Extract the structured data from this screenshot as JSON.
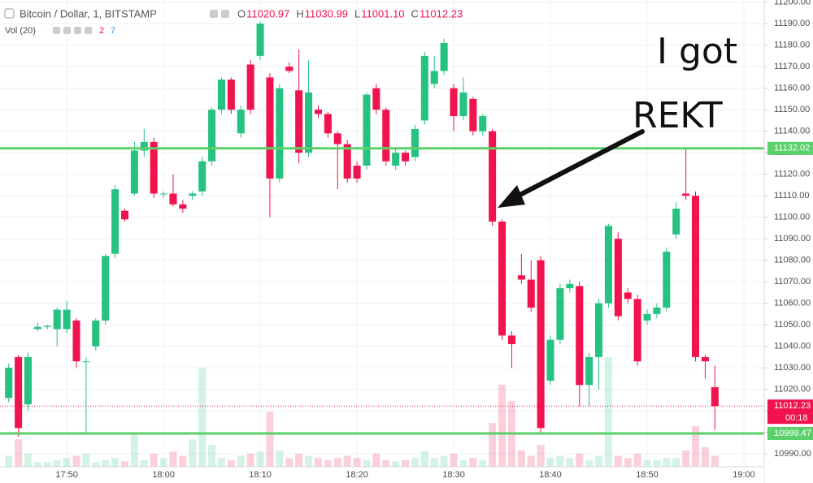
{
  "chart_data": {
    "type": "candlestick",
    "title": "Bitcoin / Dollar, 1, BITSTAMP",
    "ohlc_legend": {
      "labels": [
        "O",
        "H",
        "L",
        "C"
      ],
      "values": [
        "11020.97",
        "11030.99",
        "11001.10",
        "11012.23"
      ]
    },
    "volume_legend": {
      "label": "Vol (20)",
      "values": [
        "2",
        "7"
      ]
    },
    "up_color": "#26c281",
    "down_color": "#f0134d",
    "x": [
      1064,
      1065,
      1066,
      1067,
      1068,
      1069,
      1070,
      1071,
      1072,
      1073,
      1074,
      1075,
      1076,
      1077,
      1078,
      1079,
      1080,
      1081,
      1082,
      1083,
      1084,
      1085,
      1086,
      1087,
      1088,
      1089,
      1090,
      1091,
      1092,
      1093,
      1094,
      1095,
      1096,
      1097,
      1098,
      1099,
      1100,
      1101,
      1102,
      1103,
      1104,
      1105,
      1106,
      1107,
      1108,
      1109,
      1110,
      1111,
      1112,
      1113,
      1114,
      1115,
      1116,
      1117,
      1118,
      1119,
      1120,
      1121,
      1122,
      1123,
      1124,
      1125,
      1126,
      1127,
      1128,
      1129,
      1130,
      1131,
      1132,
      1133,
      1134,
      1135,
      1136,
      1137
    ],
    "open": [
      11016,
      11035,
      11013,
      11048,
      11049,
      11048,
      11048,
      11052,
      11033,
      11040,
      11052,
      11083,
      11103,
      11111,
      11131,
      11135,
      11111,
      11111,
      11106,
      11110,
      11112,
      11126,
      11150,
      11164,
      11139,
      11171,
      11175,
      11165,
      11118,
      11170,
      11159,
      11130,
      11150,
      11148,
      11139,
      11134,
      11124,
      11124,
      11160,
      11150,
      11124,
      11130,
      11128,
      11145,
      11162,
      11168,
      11160,
      11147,
      11155,
      11140,
      11140,
      11098,
      11045,
      11073,
      11071,
      11080,
      11024,
      11043,
      11067,
      11068,
      11022,
      11035,
      11060,
      11090,
      11065,
      11062,
      11052,
      11055,
      11058,
      11092,
      11111,
      11110,
      11035,
      11020.97
    ],
    "high": [
      11032,
      11036,
      11037,
      11051,
      11050,
      11058,
      11061,
      11053,
      11035,
      11053,
      11083,
      11115,
      11104,
      11135,
      11141,
      11137,
      11112,
      11120,
      11108,
      11112,
      11128,
      11151,
      11165,
      11165,
      11152,
      11173,
      11191,
      11167,
      11162,
      11172,
      11178,
      11173,
      11152,
      11149,
      11140,
      11136,
      11126,
      11158,
      11162,
      11151,
      11132,
      11131,
      11143,
      11177,
      11175,
      11183,
      11162,
      11165,
      11156,
      11148,
      11141,
      11099,
      11047,
      11083,
      11080,
      11082,
      11045,
      11069,
      11071,
      11070,
      11037,
      11062,
      11097,
      11093,
      11067,
      11064,
      11057,
      11060,
      11086,
      11107,
      11132,
      11112,
      11036,
      11030.99
    ],
    "low": [
      11014,
      10998,
      11010,
      11047,
      11048,
      11040,
      11046,
      11030,
      11000,
      11038,
      11050,
      11081,
      11098,
      11110,
      11128,
      11109,
      11109,
      11105,
      11102,
      11108,
      11110,
      11124,
      11148,
      11148,
      11137,
      11148,
      11173,
      11100,
      11116,
      11167,
      11125,
      11128,
      11146,
      11137,
      11113,
      11116,
      11116,
      11122,
      11148,
      11124,
      11122,
      11124,
      11126,
      11143,
      11160,
      11166,
      11140,
      11145,
      11138,
      11138,
      11096,
      11043,
      11030,
      11069,
      11056,
      11000,
      11022,
      11041,
      11065,
      11012,
      11012,
      11020,
      11058,
      11052,
      11060,
      11031,
      11050,
      11053,
      11056,
      11090,
      11108,
      11033,
      11025,
      11001.1
    ],
    "close": [
      11030,
      11002,
      11035,
      11049,
      11049.5,
      11057,
      11057,
      11033,
      11033,
      11052,
      11082,
      11113,
      11099,
      11131,
      11135,
      11111,
      11111,
      11106,
      11104,
      11111,
      11126,
      11150,
      11164,
      11150,
      11150,
      11150,
      11190,
      11118,
      11160,
      11168,
      11130,
      11158,
      11148,
      11139,
      11134,
      11118,
      11118,
      11157,
      11150,
      11126,
      11130,
      11126,
      11141,
      11175,
      11168,
      11181,
      11147,
      11158,
      11140,
      11147,
      11098,
      11045,
      11041,
      11071,
      11058,
      11002,
      11043,
      11067,
      11069,
      11022,
      11035,
      11060,
      11096,
      11054,
      11062,
      11033,
      11055,
      11058,
      11084,
      11104,
      11110,
      11035,
      11033,
      11012.23
    ],
    "volume": [
      10,
      25,
      12,
      4,
      4,
      6,
      8,
      10,
      12,
      4,
      6,
      8,
      5,
      30,
      6,
      12,
      8,
      14,
      10,
      25,
      90,
      20,
      8,
      6,
      10,
      12,
      14,
      50,
      15,
      8,
      12,
      10,
      8,
      6,
      8,
      10,
      8,
      6,
      12,
      6,
      5,
      6,
      8,
      14,
      8,
      10,
      12,
      6,
      8,
      6,
      40,
      75,
      60,
      15,
      10,
      20,
      8,
      10,
      8,
      12,
      6,
      10,
      100,
      10,
      8,
      12,
      6,
      6,
      8,
      8,
      15,
      37,
      18,
      10
    ],
    "xlim": [
      1063.1,
      1142.1
    ],
    "xticks": [
      {
        "value": 1070,
        "label": "17:50"
      },
      {
        "value": 1080,
        "label": "18:00"
      },
      {
        "value": 1090,
        "label": "18:10"
      },
      {
        "value": 1100,
        "label": "18:20"
      },
      {
        "value": 1110,
        "label": "18:30"
      },
      {
        "value": 1120,
        "label": "18:40"
      },
      {
        "value": 1130,
        "label": "18:50"
      },
      {
        "value": 1140,
        "label": "19:00"
      }
    ],
    "ylim": [
      10984,
      11201
    ],
    "yticks": [
      {
        "value": 10990,
        "label": "10990.00"
      },
      {
        "value": 11000,
        "label": "11000.00"
      },
      {
        "value": 11010,
        "label": "11010.00"
      },
      {
        "value": 11020,
        "label": "11020.00"
      },
      {
        "value": 11030,
        "label": "11030.00"
      },
      {
        "value": 11040,
        "label": "11040.00"
      },
      {
        "value": 11050,
        "label": "11050.00"
      },
      {
        "value": 11060,
        "label": "11060.00"
      },
      {
        "value": 11070,
        "label": "11070.00"
      },
      {
        "value": 11080,
        "label": "11080.00"
      },
      {
        "value": 11090,
        "label": "11090.00"
      },
      {
        "value": 11100,
        "label": "11100.00"
      },
      {
        "value": 11110,
        "label": "11110.00"
      },
      {
        "value": 11120,
        "label": "11120.00"
      },
      {
        "value": 11130,
        "label": "11130.00"
      },
      {
        "value": 11140,
        "label": "11140.00"
      },
      {
        "value": 11150,
        "label": "11150.00"
      },
      {
        "value": 11160,
        "label": "11160.00"
      },
      {
        "value": 11170,
        "label": "11170.00"
      },
      {
        "value": 11180,
        "label": "11180.00"
      },
      {
        "value": 11190,
        "label": "11190.00"
      },
      {
        "value": 11200,
        "label": "11200.00"
      }
    ],
    "grid": true,
    "levels": {
      "values": [
        11132.02,
        10999.47
      ],
      "color": "#5bd16b"
    },
    "countdown": "00:18",
    "annotations": [
      "I got",
      "REKT"
    ]
  }
}
